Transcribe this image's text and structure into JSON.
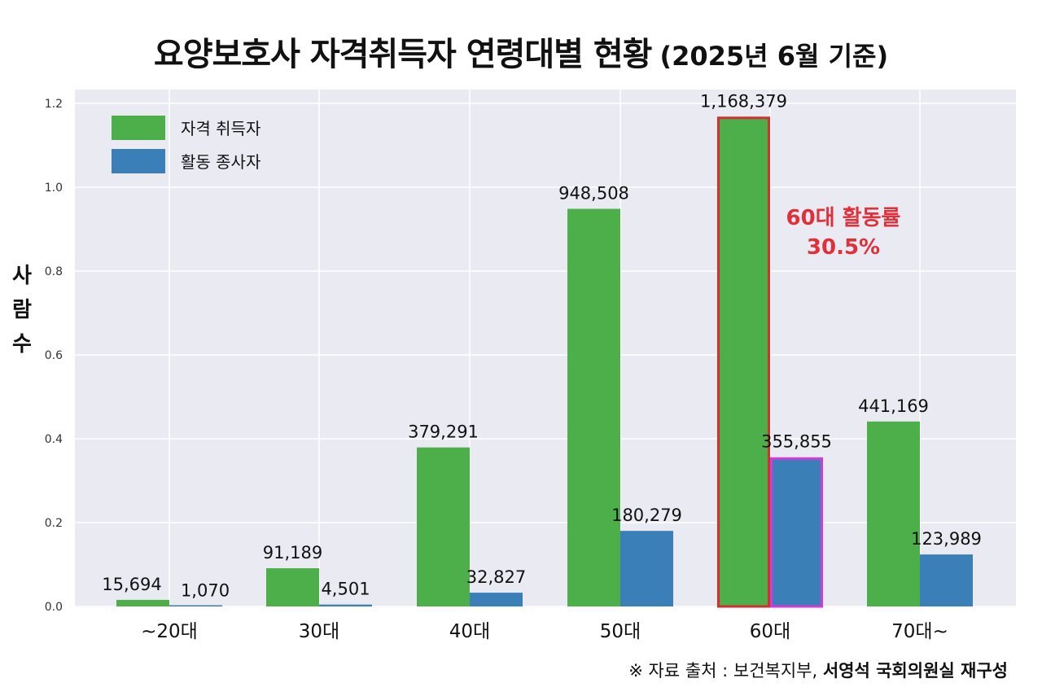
{
  "title": {
    "main": "요양보호사 자격취득자 연령대별 현황",
    "sub": "(2025년 6월 기준)"
  },
  "source": {
    "prefix": "※ 자료 출처 : 보건복지부,",
    "bold": "서영석 국회의원실 재구성"
  },
  "y_axis_chars": [
    "사",
    "람",
    "수"
  ],
  "colors": {
    "green": "#4caf4a",
    "blue": "#3a7fb8",
    "highlight_red": "#d32f2f",
    "highlight_magenta": "#d63ad6",
    "annotation_red": "#e0303a",
    "plot_bg": "#eaeaf2",
    "grid": "#ffffff"
  },
  "chart_data": {
    "type": "bar",
    "title": "요양보호사 자격취득자 연령대별 현황 (2025년 6월 기준)",
    "xlabel": "",
    "ylabel": "사람수",
    "ylim": [
      0,
      1.2
    ],
    "y_ticks": [
      "0.0",
      "0.2",
      "0.4",
      "0.6",
      "0.8",
      "1.0",
      "1.2"
    ],
    "y_tick_values": [
      0,
      0.2,
      0.4,
      0.6,
      0.8,
      1.0,
      1.2
    ],
    "y_scale": 1000000,
    "categories": [
      "~20대",
      "30대",
      "40대",
      "50대",
      "60대",
      "70대~"
    ],
    "series": [
      {
        "name": "자격 취득자",
        "values": [
          15694,
          91189,
          379291,
          948508,
          1168379,
          441169
        ],
        "labels": [
          "15,694",
          "91,189",
          "379,291",
          "948,508",
          "1,168,379",
          "441,169"
        ]
      },
      {
        "name": "활동 종사자",
        "values": [
          1070,
          4501,
          32827,
          180279,
          355855,
          123989
        ],
        "labels": [
          "1,070",
          "4,501",
          "32,827",
          "180,279",
          "355,855",
          "123,989"
        ]
      }
    ],
    "legend_position": "top-left",
    "highlight_category_index": 4,
    "annotation": {
      "line1": "60대 활동률",
      "line2": "30.5%"
    }
  }
}
